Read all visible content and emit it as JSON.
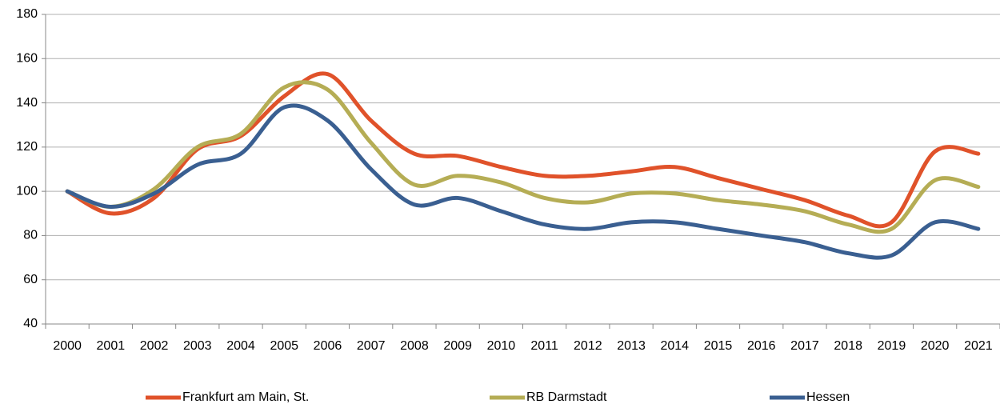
{
  "chart_data": {
    "type": "line",
    "categories": [
      "2000",
      "2001",
      "2002",
      "2003",
      "2004",
      "2005",
      "2006",
      "2007",
      "2008",
      "2009",
      "2010",
      "2011",
      "2012",
      "2013",
      "2014",
      "2015",
      "2016",
      "2017",
      "2018",
      "2019",
      "2020",
      "2021"
    ],
    "series": [
      {
        "name": "Frankfurt am Main, St.",
        "color": "#e0522a",
        "values": [
          100,
          90,
          97,
          119,
          125,
          143,
          153,
          132,
          117,
          116,
          111,
          107,
          107,
          109,
          111,
          106,
          101,
          96,
          89,
          86,
          118,
          117
        ]
      },
      {
        "name": "RB Darmstadt",
        "color": "#b5ad55",
        "values": [
          100,
          93,
          101,
          120,
          126,
          147,
          146,
          122,
          103,
          107,
          104,
          97,
          95,
          99,
          99,
          96,
          94,
          91,
          85,
          83,
          105,
          102
        ]
      },
      {
        "name": "Hessen",
        "color": "#3a5f91",
        "values": [
          100,
          93,
          99,
          112,
          117,
          138,
          132,
          110,
          94,
          97,
          91,
          85,
          83,
          86,
          86,
          83,
          80,
          77,
          72,
          71,
          86,
          83
        ]
      }
    ],
    "ylim": [
      40,
      180
    ],
    "yticks": [
      40,
      60,
      80,
      100,
      120,
      140,
      160,
      180
    ],
    "grid": true,
    "legend": "bottom"
  }
}
